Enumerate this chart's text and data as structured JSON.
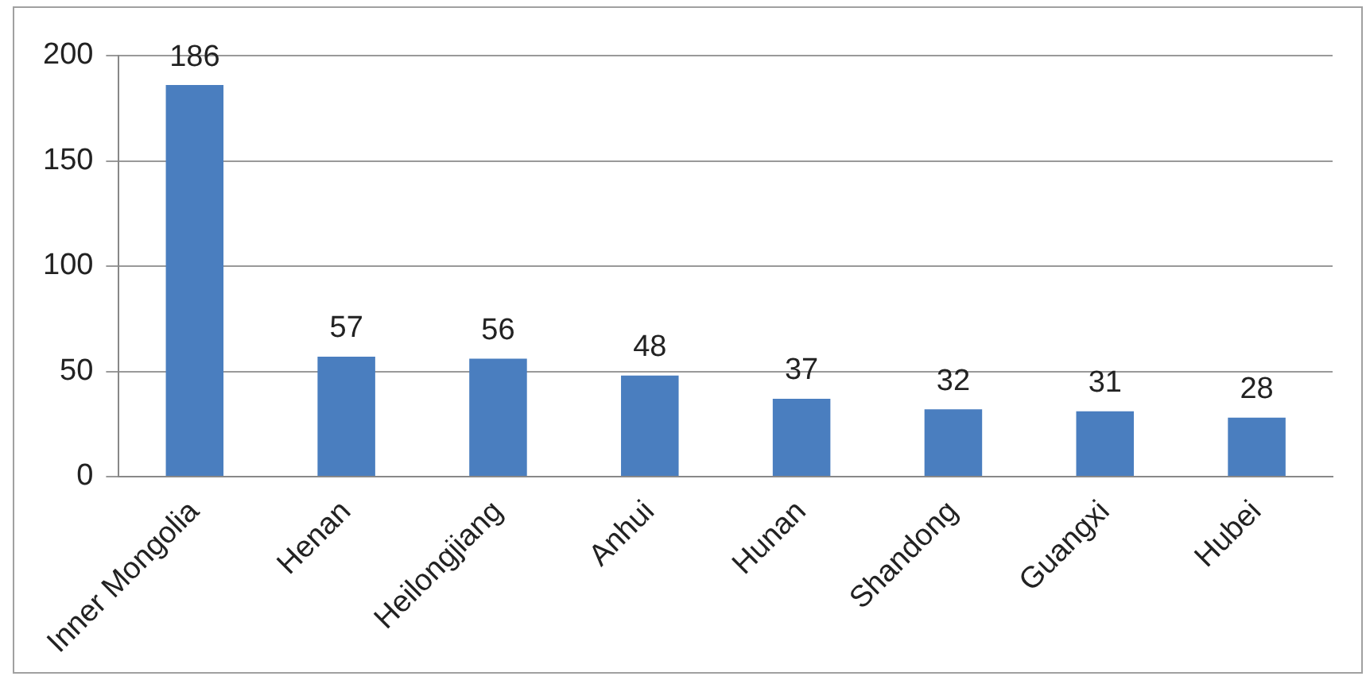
{
  "chart_data": {
    "type": "bar",
    "categories": [
      "Inner Mongolia",
      "Henan",
      "Heilongjiang",
      "Anhui",
      "Hunan",
      "Shandong",
      "Guangxi",
      "Hubei"
    ],
    "values": [
      186,
      57,
      56,
      48,
      37,
      32,
      31,
      28
    ],
    "color": "#4a7ebf",
    "ylim": [
      0,
      200
    ],
    "yticks": [
      0,
      50,
      100,
      150,
      200
    ],
    "grid": "y",
    "data_labels": true,
    "legend": false
  }
}
